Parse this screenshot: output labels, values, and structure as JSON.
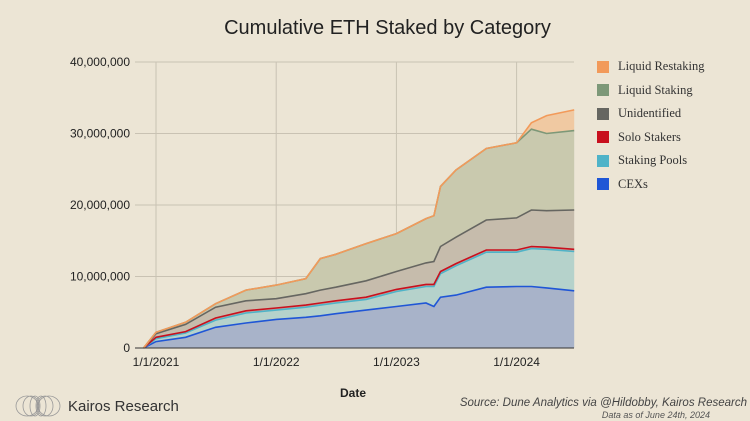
{
  "chart_data": {
    "type": "area",
    "stacked": true,
    "title": "Cumulative ETH Staked by Category",
    "xlabel": "Date",
    "ylabel": "",
    "ylim": [
      0,
      40000000
    ],
    "yticks": [
      "0",
      "10,000,000",
      "20,000,000",
      "30,000,000",
      "40,000,000"
    ],
    "ytick_values": [
      0,
      10000000,
      20000000,
      30000000,
      40000000
    ],
    "xticks": [
      "1/1/2021",
      "1/1/2022",
      "1/1/2023",
      "1/1/2024"
    ],
    "xtick_values": [
      "2021-01-01",
      "2022-01-01",
      "2023-01-01",
      "2024-01-01"
    ],
    "grid": true,
    "legend_position": "right",
    "x": [
      "2020-11-24",
      "2021-01-01",
      "2021-04-01",
      "2021-07-01",
      "2021-10-01",
      "2022-01-01",
      "2022-04-01",
      "2022-05-15",
      "2022-07-01",
      "2022-10-01",
      "2023-01-01",
      "2023-04-01",
      "2023-04-25",
      "2023-05-15",
      "2023-07-01",
      "2023-10-01",
      "2024-01-01",
      "2024-02-15",
      "2024-04-01",
      "2024-06-24"
    ],
    "series": [
      {
        "name": "CEXs",
        "color": "#1f56d6",
        "fill": "#a8b3c9",
        "values": [
          0,
          900000,
          1500000,
          2900000,
          3500000,
          4000000,
          4300000,
          4500000,
          4800000,
          5300000,
          5800000,
          6300000,
          5800000,
          7100000,
          7400000,
          8500000,
          8600000,
          8600000,
          8400000,
          8000000
        ]
      },
      {
        "name": "Staking Pools",
        "color": "#4fb3c8",
        "fill": "#b5d2cb",
        "values": [
          0,
          400000,
          600000,
          1000000,
          1400000,
          1300000,
          1400000,
          1500000,
          1500000,
          1500000,
          2100000,
          2300000,
          2800000,
          3300000,
          4100000,
          4900000,
          4800000,
          5300000,
          5400000,
          5500000
        ]
      },
      {
        "name": "Solo Stakers",
        "color": "#c8101e",
        "fill": "#c9a49a",
        "values": [
          0,
          200000,
          200000,
          300000,
          300000,
          300000,
          300000,
          300000,
          300000,
          300000,
          300000,
          300000,
          300000,
          300000,
          300000,
          300000,
          300000,
          300000,
          300000,
          300000
        ]
      },
      {
        "name": "Unidentified",
        "color": "#666661",
        "fill": "#c6bcac",
        "values": [
          0,
          500000,
          1000000,
          1500000,
          1400000,
          1300000,
          1600000,
          1800000,
          1900000,
          2300000,
          2500000,
          3000000,
          3200000,
          3500000,
          3700000,
          4200000,
          4500000,
          5100000,
          5100000,
          5500000
        ]
      },
      {
        "name": "Liquid Staking",
        "color": "#7d9878",
        "fill": "#c9c9ae",
        "values": [
          0,
          200000,
          300000,
          500000,
          1500000,
          1900000,
          2100000,
          4400000,
          4600000,
          5200000,
          5300000,
          6200000,
          6400000,
          8400000,
          9400000,
          10000000,
          10500000,
          11300000,
          10800000,
          11100000
        ]
      },
      {
        "name": "Liquid Restaking",
        "color": "#f29a5a",
        "fill": "#f0c9a2",
        "values": [
          0,
          0,
          0,
          0,
          0,
          0,
          0,
          0,
          0,
          0,
          0,
          0,
          0,
          0,
          0,
          0,
          0,
          900000,
          2500000,
          2900000
        ]
      }
    ]
  },
  "legend_order": [
    "Liquid Restaking",
    "Liquid Staking",
    "Unidentified",
    "Solo Stakers",
    "Staking Pools",
    "CEXs"
  ],
  "legend_colors": [
    "#f29a5a",
    "#7d9878",
    "#666661",
    "#c8101e",
    "#4fb3c8",
    "#1f56d6"
  ],
  "footer": {
    "brand": "Kairos Research",
    "source": "Source: Dune Analytics via @Hildobby, Kairos Research",
    "as_of": "Data as of June 24th, 2024"
  }
}
